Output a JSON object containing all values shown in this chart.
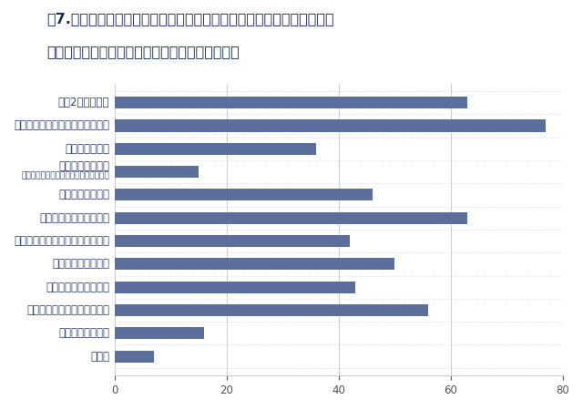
{
  "title_line1": "図7.　今回の上限規制施行にあたり、勤務先では組織的にどのような取",
  "title_line2": "　　　り組みが行われましたか？（複数選択可）",
  "categories": [
    "週休2日制の導入",
    "労働時間・残業時間の厳格な管理",
    "人材増強・育成",
    "施工時期の平準化",
    "適切な工期の設定",
    "年次有給休暇取得の奨励",
    "デジタルツール・システムの導入",
    "ノー残業デーの導入",
    "休日出勤の禁止・抑制",
    "定時退社の呼びかけ・声掛け",
    "テレワークの活用",
    "その他"
  ],
  "category_subtitles": [
    null,
    null,
    null,
    "（年間を通した工事稼働件数の平均化）",
    null,
    null,
    null,
    null,
    null,
    null,
    null,
    null
  ],
  "values": [
    63,
    77,
    36,
    15,
    46,
    63,
    42,
    50,
    43,
    56,
    16,
    7
  ],
  "bar_color": "#5b6e9c",
  "background_color": "#ffffff",
  "xlim": [
    0,
    80
  ],
  "xticks": [
    0,
    20,
    40,
    60,
    80
  ],
  "grid_color": "#cccccc",
  "bar_height": 0.52,
  "title_color": "#1a2e5a",
  "label_color": "#2a3d6e",
  "axis_label_color": "#555555",
  "title_fontsize": 11.5,
  "tick_fontsize": 8.5,
  "subtitle_label_fontsize": 6.5
}
